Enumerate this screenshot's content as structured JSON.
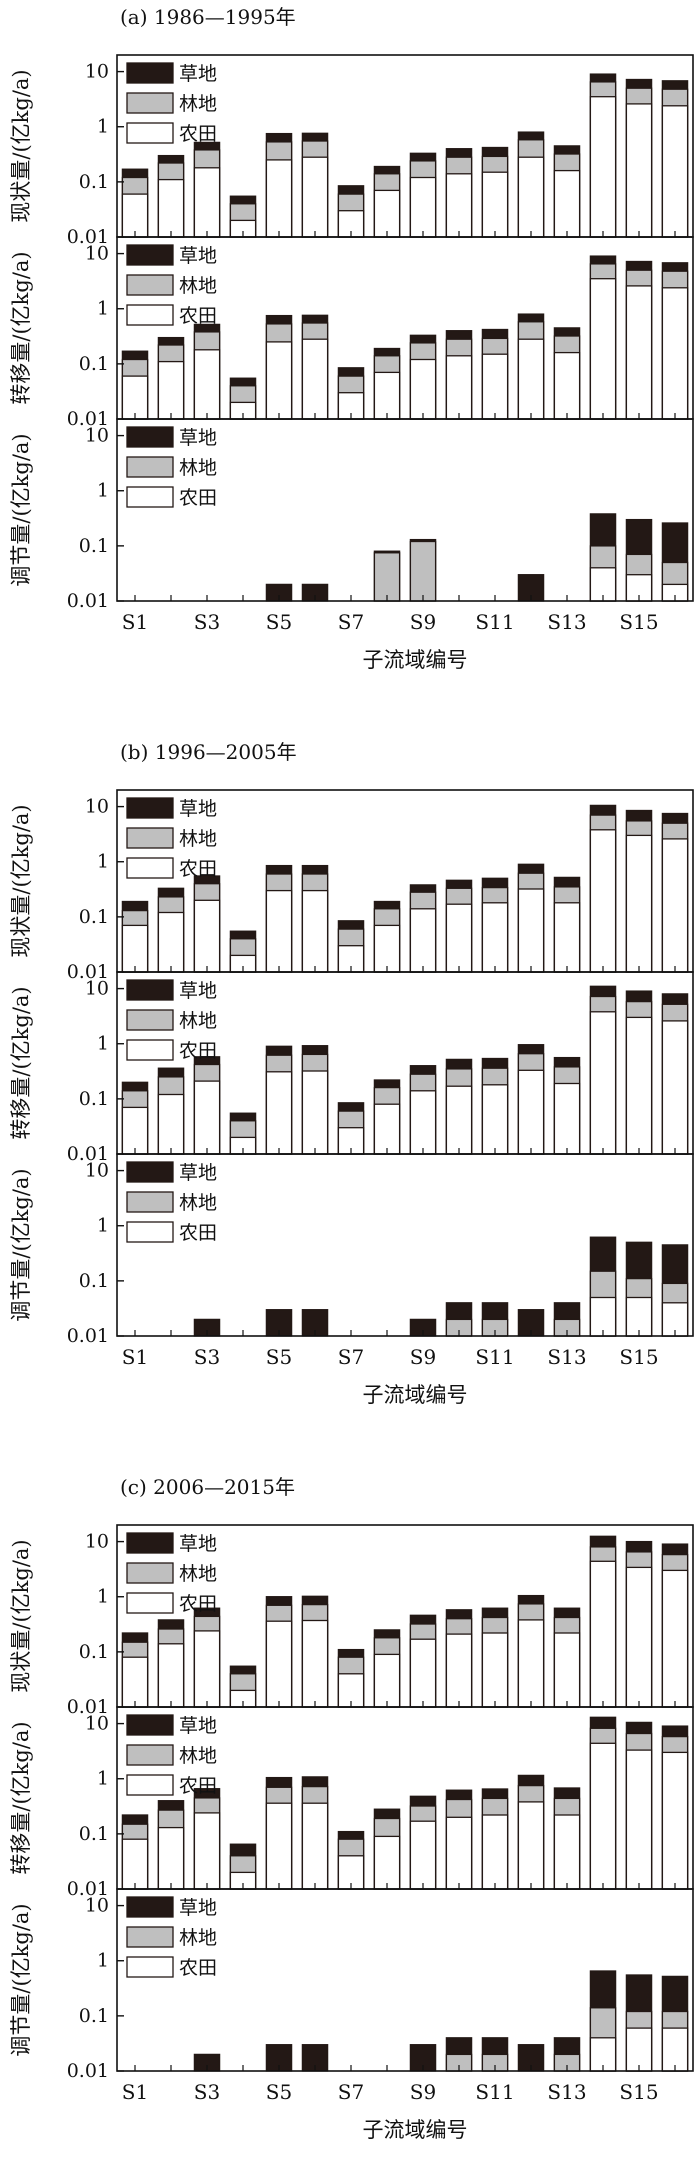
{
  "chart_data": {
    "type": "bar",
    "stacked": true,
    "yscale": "log",
    "ylim": [
      0.01,
      20
    ],
    "yticks": [
      "0.01",
      "0.1",
      "1",
      "10"
    ],
    "xlabel": "子流域编号",
    "categories": [
      "S1",
      "S2",
      "S3",
      "S4",
      "S5",
      "S6",
      "S7",
      "S8",
      "S9",
      "S10",
      "S11",
      "S12",
      "S13",
      "S14",
      "S15",
      "S16"
    ],
    "category_labels": [
      "S1",
      "",
      "S3",
      "",
      "S5",
      "",
      "S7",
      "",
      "S9",
      "",
      "S11",
      "",
      "S13",
      "",
      "S15",
      ""
    ],
    "legend": [
      {
        "name": "草地",
        "color": "#231815"
      },
      {
        "name": "林地",
        "color": "#bfbfbf"
      },
      {
        "name": "农田",
        "color": "#ffffff"
      }
    ],
    "groups": [
      {
        "title": "(a) 1986—1995年",
        "panels": [
          {
            "ylabel": "现状量/(亿kg/a)",
            "series": [
              {
                "name": "农田",
                "values": [
                  0.06,
                  0.11,
                  0.18,
                  0.02,
                  0.25,
                  0.28,
                  0.03,
                  0.07,
                  0.12,
                  0.14,
                  0.15,
                  0.28,
                  0.16,
                  3.5,
                  2.6,
                  2.4
                ]
              },
              {
                "name": "林地",
                "values": [
                  0.12,
                  0.22,
                  0.38,
                  0.04,
                  0.53,
                  0.55,
                  0.06,
                  0.14,
                  0.24,
                  0.28,
                  0.29,
                  0.58,
                  0.32,
                  6.5,
                  5.0,
                  4.8
                ]
              },
              {
                "name": "草地",
                "values": [
                  0.17,
                  0.3,
                  0.52,
                  0.055,
                  0.75,
                  0.76,
                  0.085,
                  0.19,
                  0.33,
                  0.4,
                  0.42,
                  0.8,
                  0.45,
                  9.0,
                  7.2,
                  6.8
                ]
              }
            ]
          },
          {
            "ylabel": "转移量/(亿kg/a)",
            "series": [
              {
                "name": "农田",
                "values": [
                  0.06,
                  0.11,
                  0.18,
                  0.02,
                  0.25,
                  0.28,
                  0.03,
                  0.07,
                  0.12,
                  0.14,
                  0.15,
                  0.28,
                  0.16,
                  3.5,
                  2.6,
                  2.4
                ]
              },
              {
                "name": "林地",
                "values": [
                  0.12,
                  0.22,
                  0.38,
                  0.04,
                  0.53,
                  0.55,
                  0.06,
                  0.14,
                  0.24,
                  0.28,
                  0.29,
                  0.58,
                  0.32,
                  6.5,
                  5.0,
                  4.8
                ]
              },
              {
                "name": "草地",
                "values": [
                  0.17,
                  0.3,
                  0.52,
                  0.055,
                  0.75,
                  0.76,
                  0.085,
                  0.19,
                  0.33,
                  0.4,
                  0.42,
                  0.8,
                  0.45,
                  9.0,
                  7.2,
                  6.8
                ]
              }
            ]
          },
          {
            "ylabel": "调节量/(亿kg/a)",
            "series": [
              {
                "name": "农田",
                "values": [
                  0,
                  0,
                  0,
                  0,
                  0,
                  0,
                  0,
                  0,
                  0,
                  0,
                  0,
                  0,
                  0,
                  0.04,
                  0.03,
                  0.02
                ]
              },
              {
                "name": "林地",
                "values": [
                  0,
                  0,
                  0,
                  0,
                  0,
                  0,
                  0,
                  0.075,
                  0.12,
                  0,
                  0,
                  0,
                  0,
                  0.1,
                  0.07,
                  0.05
                ]
              },
              {
                "name": "草地",
                "values": [
                  0,
                  0,
                  0,
                  0,
                  0.02,
                  0.02,
                  0,
                  0.08,
                  0.13,
                  0,
                  0,
                  0.03,
                  0,
                  0.38,
                  0.3,
                  0.26
                ]
              }
            ]
          }
        ]
      },
      {
        "title": "(b) 1996—2005年",
        "panels": [
          {
            "ylabel": "现状量/(亿kg/a)",
            "series": [
              {
                "name": "农田",
                "values": [
                  0.07,
                  0.12,
                  0.2,
                  0.02,
                  0.3,
                  0.3,
                  0.03,
                  0.07,
                  0.14,
                  0.17,
                  0.18,
                  0.32,
                  0.18,
                  3.8,
                  3.0,
                  2.6
                ]
              },
              {
                "name": "林地",
                "values": [
                  0.13,
                  0.23,
                  0.4,
                  0.04,
                  0.6,
                  0.6,
                  0.06,
                  0.14,
                  0.28,
                  0.33,
                  0.34,
                  0.62,
                  0.35,
                  7.0,
                  5.5,
                  5.0
                ]
              },
              {
                "name": "草地",
                "values": [
                  0.19,
                  0.33,
                  0.55,
                  0.055,
                  0.85,
                  0.85,
                  0.085,
                  0.19,
                  0.38,
                  0.46,
                  0.5,
                  0.9,
                  0.52,
                  10.5,
                  8.5,
                  7.5
                ]
              }
            ]
          },
          {
            "ylabel": "转移量/(亿kg/a)",
            "series": [
              {
                "name": "农田",
                "values": [
                  0.07,
                  0.12,
                  0.21,
                  0.02,
                  0.31,
                  0.32,
                  0.03,
                  0.08,
                  0.14,
                  0.17,
                  0.18,
                  0.33,
                  0.19,
                  3.8,
                  3.0,
                  2.6
                ]
              },
              {
                "name": "林地",
                "values": [
                  0.14,
                  0.25,
                  0.42,
                  0.04,
                  0.62,
                  0.64,
                  0.06,
                  0.16,
                  0.28,
                  0.35,
                  0.36,
                  0.66,
                  0.38,
                  7.2,
                  5.8,
                  5.2
                ]
              },
              {
                "name": "草地",
                "values": [
                  0.2,
                  0.36,
                  0.58,
                  0.055,
                  0.9,
                  0.92,
                  0.085,
                  0.22,
                  0.4,
                  0.52,
                  0.54,
                  0.96,
                  0.56,
                  11.0,
                  9.0,
                  8.0
                ]
              }
            ]
          },
          {
            "ylabel": "调节量/(亿kg/a)",
            "series": [
              {
                "name": "农田",
                "values": [
                  0,
                  0,
                  0,
                  0,
                  0,
                  0,
                  0,
                  0,
                  0,
                  0,
                  0.01,
                  0,
                  0.01,
                  0.05,
                  0.05,
                  0.04
                ]
              },
              {
                "name": "林地",
                "values": [
                  0,
                  0,
                  0,
                  0,
                  0,
                  0,
                  0,
                  0,
                  0,
                  0.02,
                  0.02,
                  0,
                  0.02,
                  0.15,
                  0.11,
                  0.09
                ]
              },
              {
                "name": "草地",
                "values": [
                  0,
                  0,
                  0.02,
                  0,
                  0.03,
                  0.03,
                  0,
                  0,
                  0.02,
                  0.04,
                  0.04,
                  0.03,
                  0.04,
                  0.62,
                  0.5,
                  0.45
                ]
              }
            ]
          }
        ]
      },
      {
        "title": "(c) 2006—2015年",
        "panels": [
          {
            "ylabel": "现状量/(亿kg/a)",
            "series": [
              {
                "name": "农田",
                "values": [
                  0.08,
                  0.14,
                  0.24,
                  0.02,
                  0.36,
                  0.37,
                  0.04,
                  0.09,
                  0.17,
                  0.21,
                  0.22,
                  0.38,
                  0.22,
                  4.4,
                  3.4,
                  3.0
                ]
              },
              {
                "name": "林地",
                "values": [
                  0.15,
                  0.26,
                  0.44,
                  0.04,
                  0.7,
                  0.72,
                  0.08,
                  0.18,
                  0.32,
                  0.4,
                  0.42,
                  0.74,
                  0.42,
                  8.0,
                  6.5,
                  5.8
                ]
              },
              {
                "name": "草地",
                "values": [
                  0.22,
                  0.38,
                  0.62,
                  0.055,
                  1.0,
                  1.02,
                  0.11,
                  0.25,
                  0.46,
                  0.58,
                  0.62,
                  1.05,
                  0.62,
                  12.5,
                  10.0,
                  9.0
                ]
              }
            ]
          },
          {
            "ylabel": "转移量/(亿kg/a)",
            "series": [
              {
                "name": "农田",
                "values": [
                  0.08,
                  0.13,
                  0.24,
                  0.02,
                  0.36,
                  0.36,
                  0.04,
                  0.09,
                  0.17,
                  0.2,
                  0.22,
                  0.38,
                  0.22,
                  4.4,
                  3.3,
                  3.0
                ]
              },
              {
                "name": "林地",
                "values": [
                  0.15,
                  0.27,
                  0.45,
                  0.04,
                  0.7,
                  0.72,
                  0.08,
                  0.19,
                  0.32,
                  0.42,
                  0.44,
                  0.75,
                  0.44,
                  8.2,
                  6.6,
                  5.8
                ]
              },
              {
                "name": "草地",
                "values": [
                  0.22,
                  0.4,
                  0.66,
                  0.065,
                  1.05,
                  1.08,
                  0.11,
                  0.28,
                  0.48,
                  0.62,
                  0.65,
                  1.15,
                  0.68,
                  13.0,
                  10.5,
                  9.0
                ]
              }
            ]
          },
          {
            "ylabel": "调节量/(亿kg/a)",
            "series": [
              {
                "name": "农田",
                "values": [
                  0,
                  0,
                  0,
                  0,
                  0,
                  0,
                  0,
                  0,
                  0,
                  0.01,
                  0.01,
                  0,
                  0.01,
                  0.04,
                  0.06,
                  0.06
                ]
              },
              {
                "name": "林地",
                "values": [
                  0,
                  0,
                  0,
                  0,
                  0,
                  0,
                  0,
                  0,
                  0,
                  0.02,
                  0.02,
                  0,
                  0.02,
                  0.14,
                  0.12,
                  0.12
                ]
              },
              {
                "name": "草地",
                "values": [
                  0,
                  0,
                  0.02,
                  0,
                  0.03,
                  0.03,
                  0,
                  0,
                  0.03,
                  0.04,
                  0.04,
                  0.03,
                  0.04,
                  0.65,
                  0.55,
                  0.52
                ]
              }
            ]
          }
        ]
      }
    ]
  }
}
